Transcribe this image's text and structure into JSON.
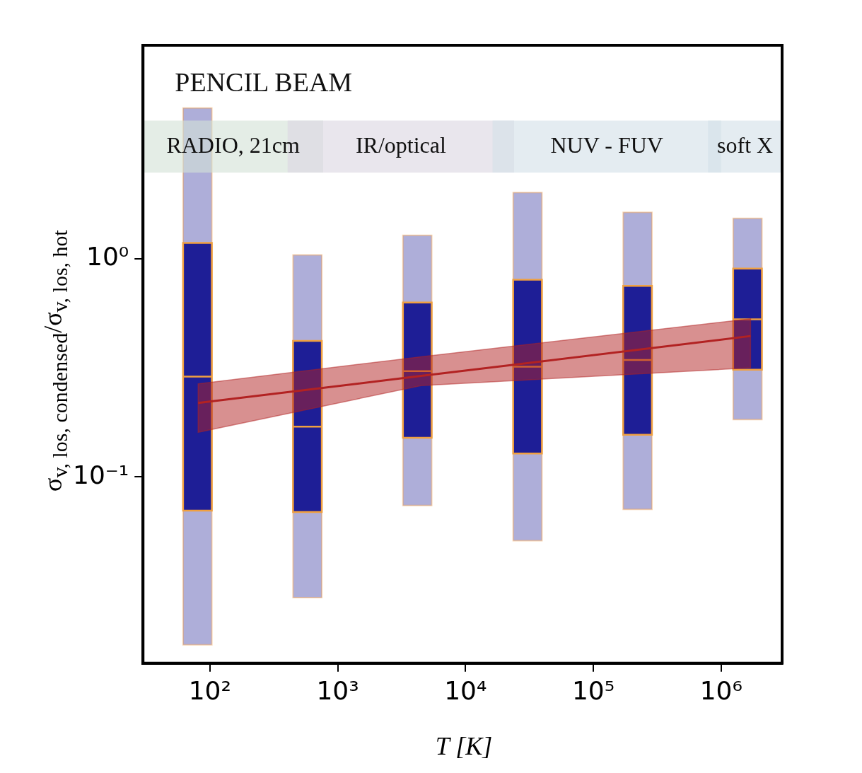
{
  "chart_data": {
    "type": "box",
    "xlabel": "T  [K]",
    "ylabel": "σ$_{v, los, condensed}$/σ$_{v, los, hot}$",
    "annotations": [
      "PENCIL BEAM"
    ],
    "log": "xy",
    "grid": false,
    "legend": false,
    "xlim": [
      30,
      3000000
    ],
    "ylim": [
      0.014,
      9.5
    ],
    "xticks": [
      {
        "value": 100,
        "label": "10²"
      },
      {
        "value": 1000,
        "label": "10³"
      },
      {
        "value": 10000,
        "label": "10⁴"
      },
      {
        "value": 100000,
        "label": "10⁵"
      },
      {
        "value": 1000000,
        "label": "10⁶"
      }
    ],
    "yticks": [
      {
        "value": 0.1,
        "label": "10⁻¹"
      },
      {
        "value": 1,
        "label": "10⁰"
      }
    ],
    "bands": [
      {
        "axis": "x",
        "from": 30,
        "to": 770,
        "label": "RADIO, 21cm",
        "color": "#d3e2d6"
      },
      {
        "axis": "x",
        "from": 406,
        "to": 24000,
        "label": "IR/optical",
        "color": "#dcd6e2"
      },
      {
        "axis": "x",
        "from": 16300,
        "to": 1000000,
        "label": "NUV - FUV",
        "color": "#d3e1e8"
      },
      {
        "axis": "x",
        "from": 790000,
        "to": 3000000,
        "label": "soft X",
        "color": "#d3e1e8"
      }
    ],
    "series": [
      {
        "color": "#1e1e96",
        "x": [
          80,
          580,
          4200,
          30600,
          222000,
          1610000
        ],
        "boxes": [
          {
            "low": 0.017,
            "q1": 0.07,
            "median": 0.288,
            "q3": 1.18,
            "high": 4.9
          },
          {
            "low": 0.028,
            "q1": 0.069,
            "median": 0.17,
            "q3": 0.42,
            "high": 1.04
          },
          {
            "low": 0.074,
            "q1": 0.151,
            "median": 0.305,
            "q3": 0.63,
            "high": 1.28
          },
          {
            "low": 0.051,
            "q1": 0.128,
            "median": 0.32,
            "q3": 0.8,
            "high": 2.01
          },
          {
            "low": 0.071,
            "q1": 0.156,
            "median": 0.343,
            "q3": 0.75,
            "high": 1.63
          },
          {
            "low": 0.183,
            "q1": 0.31,
            "median": 0.527,
            "q3": 0.9,
            "high": 1.53
          }
        ]
      },
      {
        "type": "line",
        "color": "#b22222",
        "x": [
          81,
          4500,
          1700000
        ],
        "values": [
          0.218,
          0.29,
          0.442
        ],
        "lower": [
          0.16,
          0.262,
          0.316
        ],
        "upper": [
          0.267,
          0.355,
          0.53
        ]
      }
    ]
  }
}
